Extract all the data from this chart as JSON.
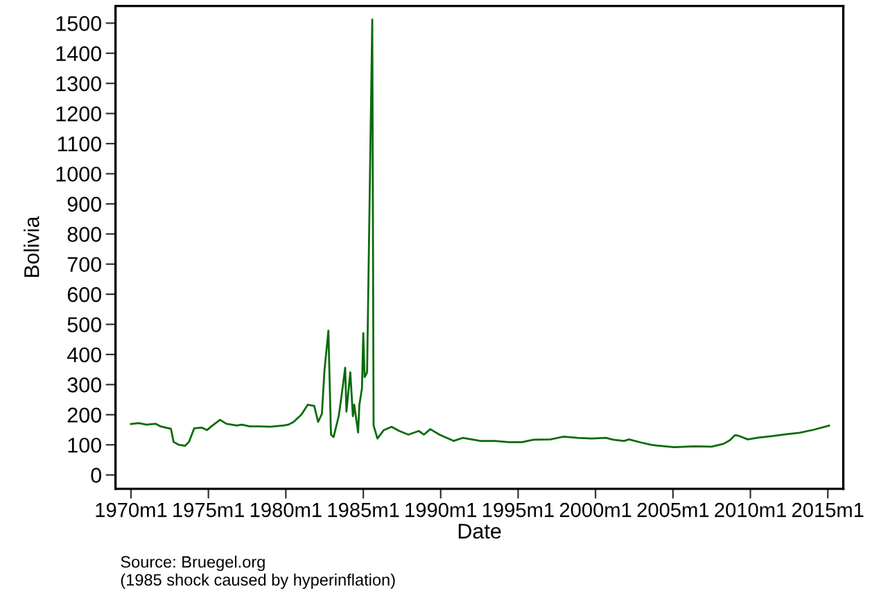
{
  "chart_data": {
    "type": "line",
    "xlabel": "Date",
    "ylabel": "Bolivia",
    "annotations": [
      "Source: Bruegel.org",
      "(1985 shock caused by hyperinflation)"
    ],
    "x": [
      "1970-01",
      "1970-07",
      "1971-01",
      "1971-08",
      "1971-12",
      "1972-08",
      "1972-10",
      "1973-02",
      "1973-07",
      "1973-10",
      "1974-02",
      "1974-08",
      "1974-12",
      "1975-03",
      "1975-10",
      "1976-03",
      "1976-11",
      "1977-03",
      "1977-09",
      "1978-05",
      "1979-01",
      "1979-11",
      "1980-03",
      "1980-07",
      "1981-01",
      "1981-06",
      "1981-11",
      "1982-02",
      "1982-05",
      "1982-07",
      "1982-10",
      "1982-12",
      "1983-02",
      "1983-06",
      "1983-08",
      "1983-11",
      "1983-12",
      "1984-03",
      "1984-05",
      "1984-06",
      "1984-09",
      "1984-10",
      "1984-12",
      "1985-01",
      "1985-02",
      "1985-04",
      "1985-08",
      "1985-09",
      "1985-12",
      "1986-05",
      "1986-11",
      "1987-05",
      "1987-12",
      "1988-08",
      "1988-12",
      "1989-05",
      "1989-12",
      "1990-11",
      "1991-06",
      "1992-01",
      "1992-08",
      "1993-07",
      "1994-06",
      "1995-04",
      "1996-01",
      "1997-02",
      "1997-12",
      "1998-11",
      "1999-10",
      "2000-09",
      "2001-03",
      "2001-11",
      "2002-03",
      "2002-12",
      "2003-08",
      "2003-12",
      "2005-02",
      "2006-05",
      "2007-07",
      "2008-04",
      "2008-09",
      "2009-01",
      "2009-04",
      "2009-11",
      "2010-07",
      "2011-06",
      "2012-04",
      "2013-03",
      "2014-02",
      "2015-02"
    ],
    "series": [
      {
        "color": "#0a6b0a",
        "values": [
          169,
          172,
          167,
          170,
          161,
          153,
          110,
          100,
          97,
          110,
          155,
          157,
          149,
          160,
          183,
          170,
          164,
          167,
          161,
          161,
          160,
          164,
          167,
          176,
          200,
          233,
          229,
          176,
          203,
          348,
          479,
          134,
          126,
          195,
          256,
          356,
          210,
          341,
          195,
          233,
          141,
          233,
          287,
          471,
          325,
          341,
          1512,
          164,
          121,
          149,
          160,
          146,
          134,
          146,
          134,
          152,
          134,
          113,
          123,
          118,
          113,
          113,
          109,
          109,
          117,
          118,
          127,
          123,
          121,
          123,
          117,
          113,
          118,
          108,
          100,
          98,
          92,
          95,
          94,
          103,
          115,
          132,
          130,
          118,
          124,
          129,
          135,
          140,
          150,
          164
        ]
      }
    ],
    "xlim": [
      "1969-01",
      "2016-01"
    ],
    "xticks": [
      {
        "value": "1970-01",
        "label": "1970m1"
      },
      {
        "value": "1975-01",
        "label": "1975m1"
      },
      {
        "value": "1980-01",
        "label": "1980m1"
      },
      {
        "value": "1985-01",
        "label": "1985m1"
      },
      {
        "value": "1990-01",
        "label": "1990m1"
      },
      {
        "value": "1995-01",
        "label": "1995m1"
      },
      {
        "value": "2000-01",
        "label": "2000m1"
      },
      {
        "value": "2005-01",
        "label": "2005m1"
      },
      {
        "value": "2010-01",
        "label": "2010m1"
      },
      {
        "value": "2015-01",
        "label": "2015m1"
      }
    ],
    "ylim": [
      -46,
      1557
    ],
    "yticks": [
      0,
      100,
      200,
      300,
      400,
      500,
      600,
      700,
      800,
      900,
      1000,
      1100,
      1200,
      1300,
      1400,
      1500
    ]
  }
}
